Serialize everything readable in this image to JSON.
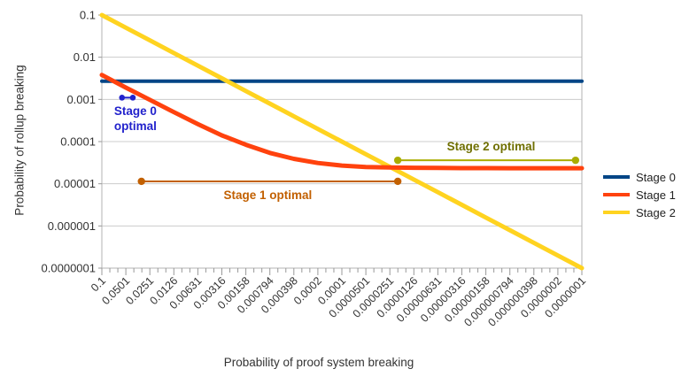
{
  "chart_data": {
    "type": "line",
    "title": "",
    "xlabel": "Probability of proof system breaking",
    "ylabel": "Probability of rollup breaking",
    "x_scale": "log-reversed",
    "y_scale": "log",
    "xlim": [
      0.1,
      1e-07
    ],
    "ylim": [
      1e-07,
      0.1
    ],
    "grid": "horizontal-major",
    "legend_position": "right",
    "x_ticks": [
      "0.1",
      "0.0501",
      "0.0251",
      "0.0126",
      "0.00631",
      "0.00316",
      "0.00158",
      "0.000794",
      "0.000398",
      "0.0002",
      "0.0001",
      "0.0000501",
      "0.0000251",
      "0.0000126",
      "0.00000631",
      "0.00000316",
      "0.00000158",
      "0.000000794",
      "0.000000398",
      "0.0000002",
      "0.0000001"
    ],
    "y_ticks": [
      "0.1",
      "0.01",
      "0.001",
      "0.0001",
      "0.00001",
      "0.000001",
      "0.0000001"
    ],
    "x": [
      0.1,
      0.0501,
      0.0251,
      0.0126,
      0.00631,
      0.00316,
      0.00158,
      0.000794,
      0.000398,
      0.0002,
      0.0001,
      5.01e-05,
      2.51e-05,
      1.26e-05,
      6.31e-06,
      3.16e-06,
      1.58e-06,
      7.94e-07,
      3.98e-07,
      2e-07,
      1e-07
    ],
    "series": [
      {
        "name": "Stage 0",
        "color": "#004586",
        "width": 4,
        "values": [
          0.0027,
          0.0027,
          0.0027,
          0.0027,
          0.0027,
          0.0027,
          0.0027,
          0.0027,
          0.0027,
          0.0027,
          0.0027,
          0.0027,
          0.0027,
          0.0027,
          0.0027,
          0.0027,
          0.0027,
          0.0027,
          0.0027,
          0.0027,
          0.0027
        ]
      },
      {
        "name": "Stage 2",
        "color": "#FFD320",
        "width": 5,
        "values": [
          0.1,
          0.0501,
          0.0251,
          0.0126,
          0.00631,
          0.00316,
          0.00158,
          0.000794,
          0.000398,
          0.0002,
          0.0001,
          5.01e-05,
          2.51e-05,
          1.26e-05,
          6.31e-06,
          3.16e-06,
          1.58e-06,
          7.94e-07,
          3.98e-07,
          2e-07,
          1e-07
        ]
      },
      {
        "name": "Stage 1",
        "color": "#FF420E",
        "width": 5,
        "values": [
          0.0038,
          0.0019,
          0.00098,
          0.0005,
          0.00026,
          0.00014,
          8.4e-05,
          5.4e-05,
          3.9e-05,
          3.1e-05,
          2.7e-05,
          2.5e-05,
          2.44e-05,
          2.39e-05,
          2.37e-05,
          2.35e-05,
          2.35e-05,
          2.34e-05,
          2.34e-05,
          2.34e-05,
          2.34e-05
        ]
      }
    ],
    "annotations": [
      {
        "label": "Stage 0\noptimal",
        "color": "#2222CC",
        "text_color": "#2222CC",
        "x_start": 0.056,
        "x_end": 0.041,
        "y": 0.0011,
        "label_placement": "below",
        "dot_radius": 3.3
      },
      {
        "label": "Stage 1 optimal",
        "color": "#C26000",
        "text_color": "#C26000",
        "x_start": 0.032,
        "x_end": 2e-05,
        "y": 1.14e-05,
        "label_placement": "below",
        "dot_radius": 4.2
      },
      {
        "label": "Stage 2 optimal",
        "color": "#AAAD00",
        "text_color": "#6F6F00",
        "x_start": 2e-05,
        "x_end": 1.2e-07,
        "y": 3.6e-05,
        "label_placement": "above",
        "dot_radius": 4.2
      }
    ],
    "legend": [
      {
        "label": "Stage 0",
        "color": "#004586"
      },
      {
        "label": "Stage 1",
        "color": "#FF420E"
      },
      {
        "label": "Stage 2",
        "color": "#FFD320"
      }
    ]
  }
}
